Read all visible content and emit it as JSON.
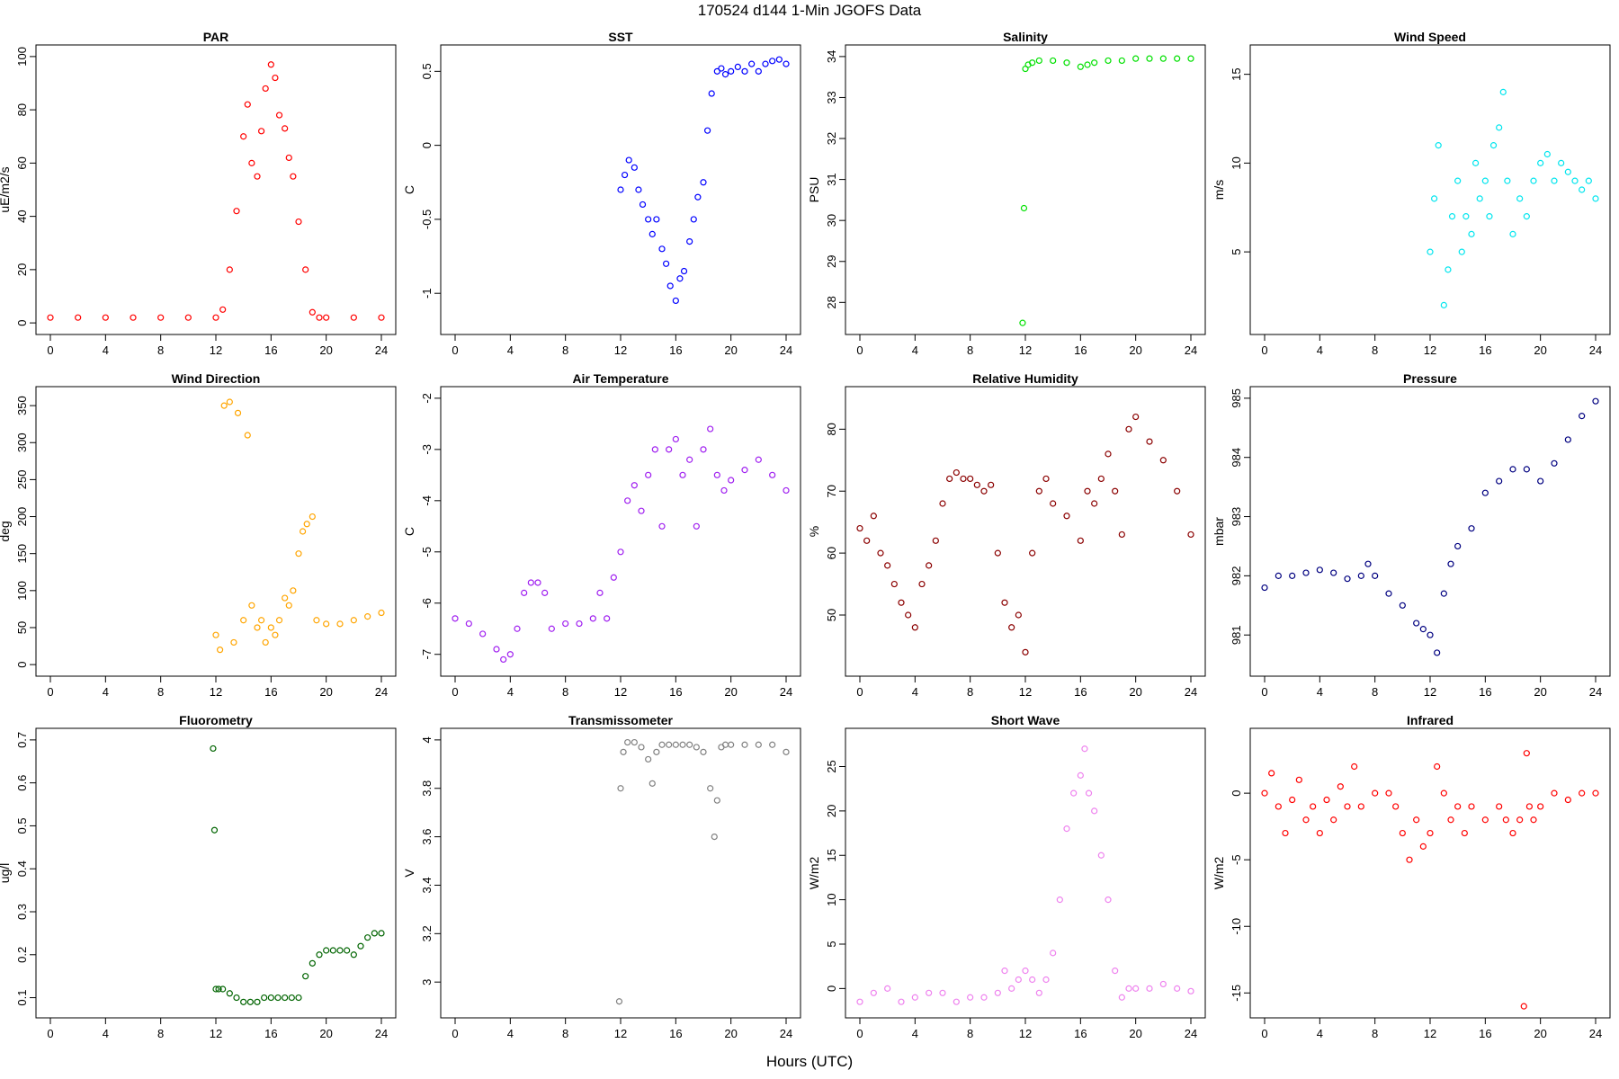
{
  "title": "170524   d144   1-Min  JGOFS Data",
  "xlabel": "Hours (UTC)",
  "chart_data": [
    {
      "type": "scatter",
      "title": "PAR",
      "ylabel": "uE/m2/s",
      "color": "#ff0000",
      "xlim": [
        0,
        24
      ],
      "ylim": [
        0,
        100
      ],
      "xticks": [
        0,
        4,
        8,
        12,
        16,
        20,
        24
      ],
      "yticks": [
        0,
        20,
        40,
        60,
        80,
        100
      ],
      "x": [
        0,
        2,
        4,
        6,
        8,
        10,
        12,
        12.5,
        13,
        13.5,
        14,
        14.3,
        14.6,
        15,
        15.3,
        15.6,
        16,
        16.3,
        16.6,
        17,
        17.3,
        17.6,
        18,
        18.5,
        19,
        19.5,
        20,
        22,
        24
      ],
      "y": [
        2,
        2,
        2,
        2,
        2,
        2,
        2,
        5,
        20,
        42,
        70,
        82,
        60,
        55,
        72,
        88,
        97,
        92,
        78,
        73,
        62,
        55,
        38,
        20,
        4,
        2,
        2,
        2,
        2
      ]
    },
    {
      "type": "scatter",
      "title": "SST",
      "ylabel": "C",
      "color": "#0000ff",
      "xlim": [
        0,
        24
      ],
      "ylim": [
        -1.2,
        0.6
      ],
      "xticks": [
        0,
        4,
        8,
        12,
        16,
        20,
        24
      ],
      "yticks": [
        -1.0,
        -0.5,
        0.0,
        0.5
      ],
      "x": [
        12,
        12.3,
        12.6,
        13,
        13.3,
        13.6,
        14,
        14.3,
        14.6,
        15,
        15.3,
        15.6,
        16,
        16.3,
        16.6,
        17,
        17.3,
        17.6,
        18,
        18.3,
        18.6,
        19,
        19.3,
        19.6,
        20,
        20.5,
        21,
        21.5,
        22,
        22.5,
        23,
        23.5,
        24
      ],
      "y": [
        -0.3,
        -0.2,
        -0.1,
        -0.15,
        -0.3,
        -0.4,
        -0.5,
        -0.6,
        -0.5,
        -0.7,
        -0.8,
        -0.95,
        -1.05,
        -0.9,
        -0.85,
        -0.65,
        -0.5,
        -0.35,
        -0.25,
        0.1,
        0.35,
        0.5,
        0.52,
        0.48,
        0.5,
        0.53,
        0.5,
        0.55,
        0.5,
        0.55,
        0.57,
        0.58,
        0.55
      ]
    },
    {
      "type": "scatter",
      "title": "Salinity",
      "ylabel": "PSU",
      "color": "#00e000",
      "xlim": [
        0,
        24
      ],
      "ylim": [
        27.5,
        34
      ],
      "xticks": [
        0,
        4,
        8,
        12,
        16,
        20,
        24
      ],
      "yticks": [
        28,
        29,
        30,
        31,
        32,
        33,
        34
      ],
      "x": [
        11.8,
        11.9,
        12,
        12.2,
        12.5,
        13,
        14,
        15,
        16,
        16.5,
        17,
        18,
        19,
        20,
        21,
        22,
        23,
        24
      ],
      "y": [
        27.5,
        30.3,
        33.7,
        33.8,
        33.85,
        33.9,
        33.9,
        33.85,
        33.75,
        33.8,
        33.85,
        33.9,
        33.9,
        33.95,
        33.95,
        33.95,
        33.95,
        33.95
      ]
    },
    {
      "type": "scatter",
      "title": "Wind Speed",
      "ylabel": "m/s",
      "color": "#00e5ee",
      "xlim": [
        0,
        24
      ],
      "ylim": [
        1,
        16
      ],
      "xticks": [
        0,
        4,
        8,
        12,
        16,
        20,
        24
      ],
      "yticks": [
        5,
        10,
        15
      ],
      "x": [
        12,
        12.3,
        12.6,
        13,
        13.3,
        13.6,
        14,
        14.3,
        14.6,
        15,
        15.3,
        15.6,
        16,
        16.3,
        16.6,
        17,
        17.3,
        17.6,
        18,
        18.5,
        19,
        19.5,
        20,
        20.5,
        21,
        21.5,
        22,
        22.5,
        23,
        23.5,
        24
      ],
      "y": [
        5,
        8,
        11,
        2,
        4,
        7,
        9,
        5,
        7,
        6,
        10,
        8,
        9,
        7,
        11,
        12,
        14,
        9,
        6,
        8,
        7,
        9,
        10,
        10.5,
        9,
        10,
        9.5,
        9,
        8.5,
        9,
        8
      ]
    },
    {
      "type": "scatter",
      "title": "Wind Direction",
      "ylabel": "deg",
      "color": "#ffa500",
      "xlim": [
        0,
        24
      ],
      "ylim": [
        0,
        360
      ],
      "xticks": [
        0,
        4,
        8,
        12,
        16,
        20,
        24
      ],
      "yticks": [
        0,
        50,
        100,
        150,
        200,
        250,
        300,
        350
      ],
      "x": [
        12,
        12.3,
        12.6,
        13,
        13.3,
        13.6,
        14,
        14.3,
        14.6,
        15,
        15.3,
        15.6,
        16,
        16.3,
        16.6,
        17,
        17.3,
        17.6,
        18,
        18.3,
        18.6,
        19,
        19.3,
        20,
        21,
        22,
        23,
        24
      ],
      "y": [
        40,
        20,
        350,
        355,
        30,
        340,
        60,
        310,
        80,
        50,
        60,
        30,
        50,
        40,
        60,
        90,
        80,
        100,
        150,
        180,
        190,
        200,
        60,
        55,
        55,
        60,
        65,
        70
      ]
    },
    {
      "type": "scatter",
      "title": "Air Temperature",
      "ylabel": "C",
      "color": "#a020f0",
      "xlim": [
        0,
        24
      ],
      "ylim": [
        -7.2,
        -2
      ],
      "xticks": [
        0,
        4,
        8,
        12,
        16,
        20,
        24
      ],
      "yticks": [
        -7,
        -6,
        -5,
        -4,
        -3,
        -2
      ],
      "x": [
        0,
        1,
        2,
        3,
        3.5,
        4,
        4.5,
        5,
        5.5,
        6,
        6.5,
        7,
        8,
        9,
        10,
        10.5,
        11,
        11.5,
        12,
        12.5,
        13,
        13.5,
        14,
        14.5,
        15,
        15.5,
        16,
        16.5,
        17,
        17.5,
        18,
        18.5,
        19,
        19.5,
        20,
        21,
        22,
        23,
        24
      ],
      "y": [
        -6.3,
        -6.4,
        -6.6,
        -6.9,
        -7.1,
        -7.0,
        -6.5,
        -5.8,
        -5.6,
        -5.6,
        -5.8,
        -6.5,
        -6.4,
        -6.4,
        -6.3,
        -5.8,
        -6.3,
        -5.5,
        -5.0,
        -4.0,
        -3.7,
        -4.2,
        -3.5,
        -3.0,
        -4.5,
        -3.0,
        -2.8,
        -3.5,
        -3.2,
        -4.5,
        -3.0,
        -2.6,
        -3.5,
        -3.8,
        -3.6,
        -3.4,
        -3.2,
        -3.5,
        -3.8
      ]
    },
    {
      "type": "scatter",
      "title": "Relative Humidity",
      "ylabel": "%",
      "color": "#8b0000",
      "xlim": [
        0,
        24
      ],
      "ylim": [
        42,
        85
      ],
      "xticks": [
        0,
        4,
        8,
        12,
        16,
        20,
        24
      ],
      "yticks": [
        50,
        60,
        70,
        80
      ],
      "x": [
        0,
        0.5,
        1,
        1.5,
        2,
        2.5,
        3,
        3.5,
        4,
        4.5,
        5,
        5.5,
        6,
        6.5,
        7,
        7.5,
        8,
        8.5,
        9,
        9.5,
        10,
        10.5,
        11,
        11.5,
        12,
        12.5,
        13,
        13.5,
        14,
        15,
        16,
        16.5,
        17,
        17.5,
        18,
        18.5,
        19,
        19.5,
        20,
        21,
        22,
        23,
        24
      ],
      "y": [
        64,
        62,
        66,
        60,
        58,
        55,
        52,
        50,
        48,
        55,
        58,
        62,
        68,
        72,
        73,
        72,
        72,
        71,
        70,
        71,
        60,
        52,
        48,
        50,
        44,
        60,
        70,
        72,
        68,
        66,
        62,
        70,
        68,
        72,
        76,
        70,
        63,
        80,
        82,
        78,
        75,
        70,
        63
      ]
    },
    {
      "type": "scatter",
      "title": "Pressure",
      "ylabel": "mbar",
      "color": "#000080",
      "xlim": [
        0,
        24
      ],
      "ylim": [
        980.5,
        985
      ],
      "xticks": [
        0,
        4,
        8,
        12,
        16,
        20,
        24
      ],
      "yticks": [
        981,
        982,
        983,
        984,
        985
      ],
      "x": [
        0,
        1,
        2,
        3,
        4,
        5,
        6,
        7,
        7.5,
        8,
        9,
        10,
        11,
        11.5,
        12,
        12.5,
        13,
        13.5,
        14,
        15,
        16,
        17,
        18,
        19,
        20,
        21,
        22,
        23,
        24
      ],
      "y": [
        981.8,
        982.0,
        982.0,
        982.05,
        982.1,
        982.05,
        981.95,
        982.0,
        982.2,
        982.0,
        981.7,
        981.5,
        981.2,
        981.1,
        981.0,
        980.7,
        981.7,
        982.2,
        982.5,
        982.8,
        983.4,
        983.6,
        983.8,
        983.8,
        983.6,
        983.9,
        984.3,
        984.7,
        984.95
      ]
    },
    {
      "type": "scatter",
      "title": "Fluorometry",
      "ylabel": "ug/l",
      "color": "#006400",
      "xlim": [
        0,
        24
      ],
      "ylim": [
        0.08,
        0.7
      ],
      "xticks": [
        0,
        4,
        8,
        12,
        16,
        20,
        24
      ],
      "yticks": [
        0.1,
        0.2,
        0.3,
        0.4,
        0.5,
        0.6,
        0.7
      ],
      "x": [
        11.8,
        11.9,
        12,
        12.2,
        12.5,
        13,
        13.5,
        14,
        14.5,
        15,
        15.5,
        16,
        16.5,
        17,
        17.5,
        18,
        18.5,
        19,
        19.5,
        20,
        20.5,
        21,
        21.5,
        22,
        22.5,
        23,
        23.5,
        24
      ],
      "y": [
        0.68,
        0.49,
        0.12,
        0.12,
        0.12,
        0.11,
        0.1,
        0.09,
        0.09,
        0.09,
        0.1,
        0.1,
        0.1,
        0.1,
        0.1,
        0.1,
        0.15,
        0.18,
        0.2,
        0.21,
        0.21,
        0.21,
        0.21,
        0.2,
        0.22,
        0.24,
        0.25,
        0.25
      ]
    },
    {
      "type": "scatter",
      "title": "Transmissometer",
      "ylabel": "V",
      "color": "#808080",
      "xlim": [
        0,
        24
      ],
      "ylim": [
        2.9,
        4.0
      ],
      "xticks": [
        0,
        4,
        8,
        12,
        16,
        20,
        24
      ],
      "yticks": [
        3.0,
        3.2,
        3.4,
        3.6,
        3.8,
        4.0
      ],
      "x": [
        11.9,
        12,
        12.2,
        12.5,
        13,
        13.5,
        14,
        14.3,
        14.6,
        15,
        15.5,
        16,
        16.5,
        17,
        17.5,
        18,
        18.5,
        18.8,
        19,
        19.3,
        19.6,
        20,
        21,
        22,
        23,
        24
      ],
      "y": [
        2.92,
        3.8,
        3.95,
        3.99,
        3.99,
        3.97,
        3.92,
        3.82,
        3.95,
        3.98,
        3.98,
        3.98,
        3.98,
        3.98,
        3.97,
        3.95,
        3.8,
        3.6,
        3.75,
        3.97,
        3.98,
        3.98,
        3.98,
        3.98,
        3.98,
        3.95
      ]
    },
    {
      "type": "scatter",
      "title": "Short Wave",
      "ylabel": "W/m2",
      "color": "#ee82ee",
      "xlim": [
        0,
        24
      ],
      "ylim": [
        -2,
        28
      ],
      "xticks": [
        0,
        4,
        8,
        12,
        16,
        20,
        24
      ],
      "yticks": [
        0,
        5,
        10,
        15,
        20,
        25
      ],
      "x": [
        0,
        1,
        2,
        3,
        4,
        5,
        6,
        7,
        8,
        9,
        10,
        10.5,
        11,
        11.5,
        12,
        12.5,
        13,
        13.5,
        14,
        14.5,
        15,
        15.5,
        16,
        16.3,
        16.6,
        17,
        17.5,
        18,
        18.5,
        19,
        19.5,
        20,
        21,
        22,
        23,
        24
      ],
      "y": [
        -1.5,
        -0.5,
        0,
        -1.5,
        -1,
        -0.5,
        -0.5,
        -1.5,
        -1,
        -1,
        -0.5,
        2,
        0,
        1,
        2,
        1,
        -0.5,
        1,
        4,
        10,
        18,
        22,
        24,
        27,
        22,
        20,
        15,
        10,
        2,
        -1,
        0,
        0,
        0,
        0.5,
        0,
        -0.3
      ]
    },
    {
      "type": "scatter",
      "title": "Infrared",
      "ylabel": "W/m2",
      "color": "#ff0000",
      "xlim": [
        0,
        24
      ],
      "ylim": [
        -16,
        4
      ],
      "xticks": [
        0,
        4,
        8,
        12,
        16,
        20,
        24
      ],
      "yticks": [
        -15,
        -10,
        -5,
        0
      ],
      "x": [
        0,
        0.5,
        1,
        1.5,
        2,
        2.5,
        3,
        3.5,
        4,
        4.5,
        5,
        5.5,
        6,
        6.5,
        7,
        8,
        9,
        9.5,
        10,
        10.5,
        11,
        11.5,
        12,
        12.5,
        13,
        13.5,
        14,
        14.5,
        15,
        16,
        17,
        17.5,
        18,
        18.5,
        18.8,
        19,
        19.2,
        19.5,
        20,
        21,
        22,
        23,
        24
      ],
      "y": [
        0,
        1.5,
        -1,
        -3,
        -0.5,
        1,
        -2,
        -1,
        -3,
        -0.5,
        -2,
        0.5,
        -1,
        2,
        -1,
        0,
        0,
        -1,
        -3,
        -5,
        -2,
        -4,
        -3,
        2,
        0,
        -2,
        -1,
        -3,
        -1,
        -2,
        -1,
        -2,
        -3,
        -2,
        -16,
        3,
        -1,
        -2,
        -1,
        0,
        -0.5,
        0,
        0
      ]
    }
  ]
}
